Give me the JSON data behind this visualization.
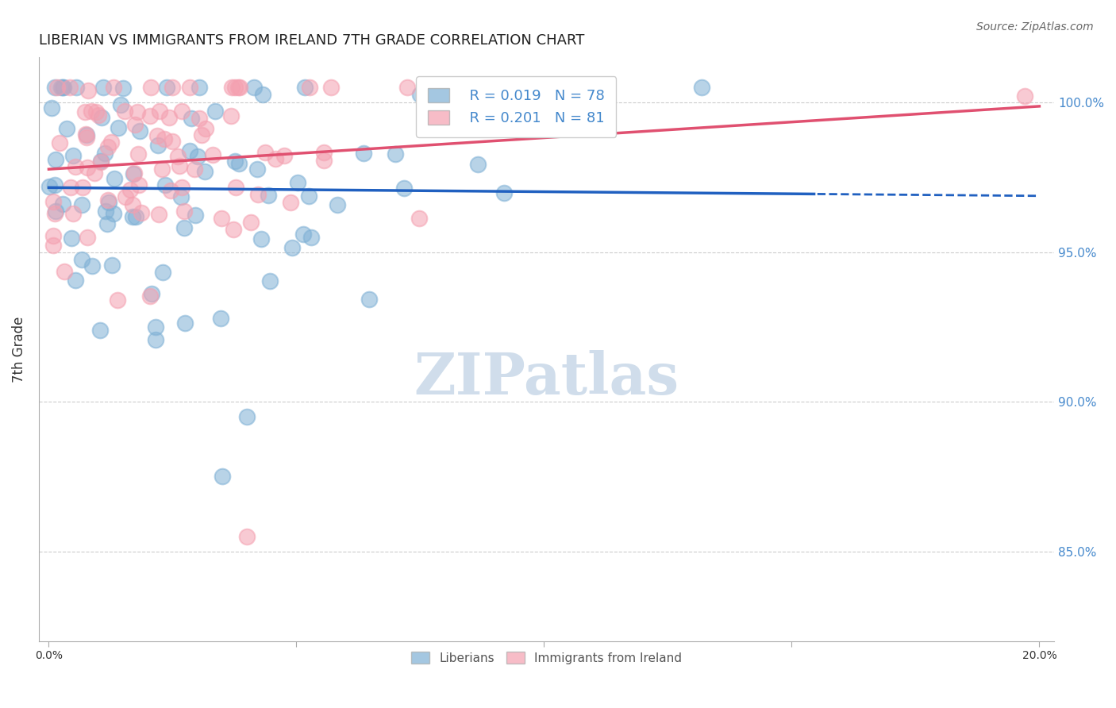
{
  "title": "LIBERIAN VS IMMIGRANTS FROM IRELAND 7TH GRADE CORRELATION CHART",
  "source": "Source: ZipAtlas.com",
  "ylabel": "7th Grade",
  "ylim": [
    0.82,
    1.015
  ],
  "xlim": [
    -0.002,
    0.203
  ],
  "yticks": [
    0.85,
    0.9,
    0.95,
    1.0
  ],
  "ytick_labels": [
    "85.0%",
    "90.0%",
    "95.0%",
    "100.0%"
  ],
  "blue_color": "#7EB0D5",
  "pink_color": "#F4A0B0",
  "blue_line_color": "#2060C0",
  "pink_line_color": "#E05070",
  "legend_R_blue": "0.019",
  "legend_N_blue": "78",
  "legend_R_pink": "0.201",
  "legend_N_pink": "81",
  "watermark": "ZIPatlas",
  "watermark_color": "#C8D8E8"
}
